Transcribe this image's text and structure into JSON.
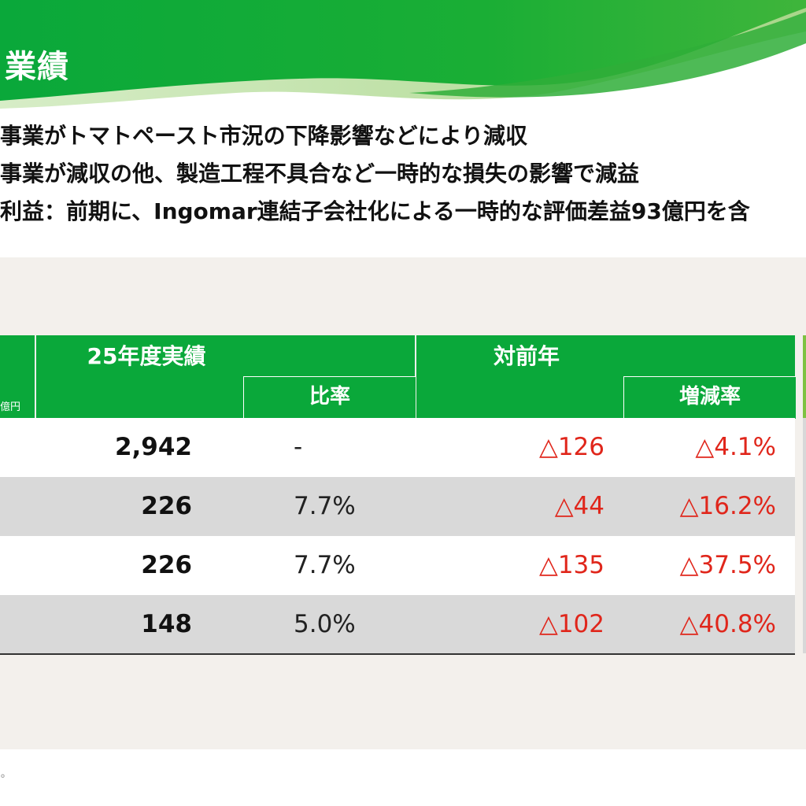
{
  "header": {
    "title": "業績",
    "colors": {
      "dark_green": "#0aa83a",
      "mid_green": "#3fb53b",
      "light_green": "#a9d68a"
    }
  },
  "bullets": [
    "事業がトマトペースト市況の下降影響などにより減収",
    "事業が減収の他、製造工程不具合など一時的な損失の影響で減益",
    "利益：前期に、Ingomar連結子会社化による一時的な評価差益93億円を含"
  ],
  "table": {
    "unit_label": "億円",
    "header": {
      "actual_group": "25年度実績",
      "ratio": "比率",
      "yoy_group": "対前年",
      "rate": "増減率"
    },
    "rows": [
      {
        "actual": "2,942",
        "ratio": "-",
        "diff": "△126",
        "rate": "△4.1%"
      },
      {
        "actual": "226",
        "ratio": "7.7%",
        "diff": "△44",
        "rate": "△16.2%"
      },
      {
        "actual": "226",
        "ratio": "7.7%",
        "diff": "△135",
        "rate": "△37.5%"
      },
      {
        "actual": "148",
        "ratio": "5.0%",
        "diff": "△102",
        "rate": "△40.8%"
      }
    ],
    "colors": {
      "header": "#0aa83a",
      "negative": "#e0261b",
      "alt_row": "#d9d9d9"
    }
  },
  "footer": {
    "corner_mark": "°"
  }
}
